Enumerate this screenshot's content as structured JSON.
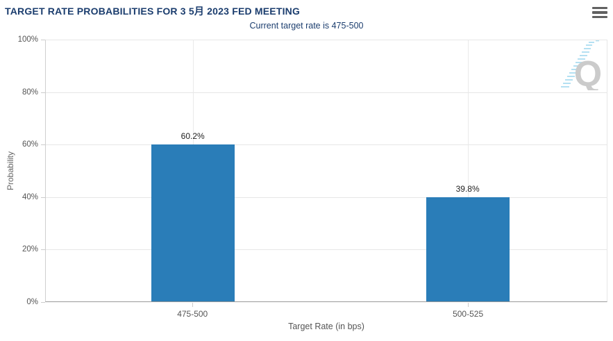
{
  "header": {
    "title": "TARGET RATE PROBABILITIES FOR 3 5月 2023 FED MEETING",
    "subtitle": "Current target rate is 475-500"
  },
  "watermark": {
    "letter": "Q"
  },
  "chart_data": {
    "type": "bar",
    "title": "TARGET RATE PROBABILITIES FOR 3 5月 2023 FED MEETING",
    "subtitle": "Current target rate is 475-500",
    "categories": [
      "475-500",
      "500-525"
    ],
    "values": [
      60.2,
      39.8
    ],
    "data_labels": [
      "60.2%",
      "39.8%"
    ],
    "xlabel": "Target Rate (in bps)",
    "ylabel": "Probability",
    "ylim": [
      0,
      100
    ],
    "yticks": [
      0,
      20,
      40,
      60,
      80,
      100
    ],
    "ytick_labels": [
      "0%",
      "20%",
      "40%",
      "60%",
      "80%",
      "100%"
    ],
    "grid": true,
    "legend": "none",
    "bar_color": "#2a7db8"
  },
  "colors": {
    "title": "#1b3d6e",
    "bar": "#2a7db8",
    "gridline": "#e6e6e6",
    "axis_line": "#999999",
    "tick_label": "#555555",
    "watermark_letter": "#cbcbcb",
    "watermark_dashes": "#b4e0f2",
    "menu_icon": "#616161"
  }
}
